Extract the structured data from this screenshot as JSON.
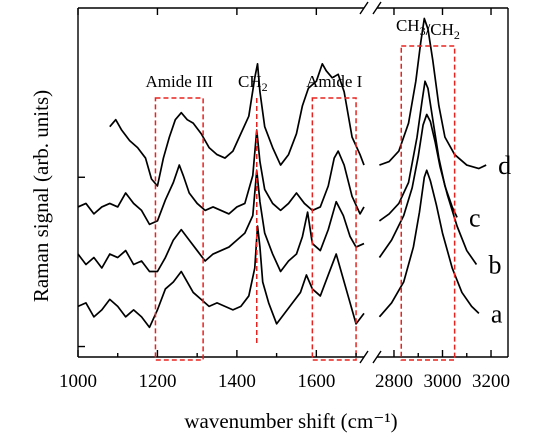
{
  "chart_data": {
    "type": "line",
    "title": "",
    "xlabel": "wavenumber shift (cm⁻¹)",
    "ylabel": "Raman signal (arb. units)",
    "x_ticks_left": [
      1000,
      1200,
      1400,
      1600
    ],
    "x_ticks_right": [
      2800,
      3000,
      3200
    ],
    "x_tick_labels": [
      "1000",
      "1200",
      "1400",
      "1600",
      "2800",
      "3000",
      "3200"
    ],
    "xlim_left": [
      1000,
      1720
    ],
    "xlim_right": [
      2730,
      3270
    ],
    "axis_break": "between 1720 and 2730 cm⁻¹",
    "ylim": [
      0,
      10
    ],
    "grid": false,
    "annotations": [
      {
        "label": "Amide III",
        "x_range": [
          1195,
          1315
        ],
        "kind": "dashed-box",
        "color": "#e8231f"
      },
      {
        "label": "CH",
        "sub": "2",
        "x": 1450,
        "kind": "dashed-line",
        "color": "#e8231f"
      },
      {
        "label": "Amide I",
        "x_range": [
          1590,
          1700
        ],
        "kind": "dashed-box",
        "color": "#e8231f"
      },
      {
        "label_parts": [
          {
            "t": "CH"
          },
          {
            "t": "3",
            "sub": true
          },
          {
            "t": "/CH"
          },
          {
            "t": "2",
            "sub": true
          }
        ],
        "x_range": [
          2830,
          3050
        ],
        "kind": "dashed-box",
        "color": "#e8231f"
      }
    ],
    "series": [
      {
        "name": "a",
        "offset": 0.55,
        "left": [
          [
            1000,
            0.9
          ],
          [
            1020,
            1.0
          ],
          [
            1040,
            0.6
          ],
          [
            1060,
            0.8
          ],
          [
            1080,
            1.1
          ],
          [
            1100,
            0.9
          ],
          [
            1120,
            0.6
          ],
          [
            1140,
            0.8
          ],
          [
            1160,
            0.6
          ],
          [
            1180,
            0.3
          ],
          [
            1200,
            0.8
          ],
          [
            1220,
            1.4
          ],
          [
            1240,
            1.6
          ],
          [
            1260,
            1.9
          ],
          [
            1270,
            1.7
          ],
          [
            1290,
            1.3
          ],
          [
            1310,
            1.1
          ],
          [
            1330,
            0.9
          ],
          [
            1350,
            1.0
          ],
          [
            1370,
            0.9
          ],
          [
            1390,
            0.8
          ],
          [
            1410,
            0.9
          ],
          [
            1430,
            1.2
          ],
          [
            1445,
            2.0
          ],
          [
            1452,
            3.2
          ],
          [
            1458,
            2.6
          ],
          [
            1465,
            1.6
          ],
          [
            1480,
            1.0
          ],
          [
            1500,
            0.4
          ],
          [
            1520,
            0.7
          ],
          [
            1540,
            1.0
          ],
          [
            1560,
            1.3
          ],
          [
            1575,
            1.8
          ],
          [
            1590,
            1.4
          ],
          [
            1610,
            1.2
          ],
          [
            1630,
            1.8
          ],
          [
            1650,
            2.4
          ],
          [
            1665,
            1.8
          ],
          [
            1680,
            1.2
          ],
          [
            1700,
            0.4
          ],
          [
            1720,
            0.7
          ]
        ],
        "right": [
          [
            2740,
            0.6
          ],
          [
            2790,
            1.0
          ],
          [
            2840,
            1.6
          ],
          [
            2880,
            2.6
          ],
          [
            2905,
            3.6
          ],
          [
            2925,
            4.6
          ],
          [
            2935,
            4.8
          ],
          [
            2950,
            4.5
          ],
          [
            2975,
            3.8
          ],
          [
            3000,
            3.0
          ],
          [
            3040,
            2.0
          ],
          [
            3080,
            1.3
          ],
          [
            3120,
            0.9
          ],
          [
            3150,
            0.7
          ]
        ]
      },
      {
        "name": "b",
        "offset": 1.85,
        "left": [
          [
            1000,
            1.1
          ],
          [
            1020,
            0.8
          ],
          [
            1040,
            1.0
          ],
          [
            1060,
            0.7
          ],
          [
            1080,
            1.1
          ],
          [
            1100,
            1.0
          ],
          [
            1120,
            1.2
          ],
          [
            1140,
            0.8
          ],
          [
            1160,
            0.9
          ],
          [
            1180,
            0.6
          ],
          [
            1200,
            0.6
          ],
          [
            1220,
            1.0
          ],
          [
            1240,
            1.5
          ],
          [
            1260,
            1.8
          ],
          [
            1280,
            1.5
          ],
          [
            1300,
            1.2
          ],
          [
            1320,
            0.9
          ],
          [
            1340,
            1.1
          ],
          [
            1360,
            1.2
          ],
          [
            1380,
            1.3
          ],
          [
            1400,
            1.5
          ],
          [
            1420,
            1.7
          ],
          [
            1440,
            2.2
          ],
          [
            1450,
            3.5
          ],
          [
            1458,
            2.6
          ],
          [
            1470,
            1.7
          ],
          [
            1490,
            1.1
          ],
          [
            1510,
            0.6
          ],
          [
            1530,
            0.9
          ],
          [
            1550,
            1.1
          ],
          [
            1565,
            1.6
          ],
          [
            1578,
            2.3
          ],
          [
            1590,
            1.4
          ],
          [
            1610,
            1.2
          ],
          [
            1630,
            1.8
          ],
          [
            1650,
            2.6
          ],
          [
            1668,
            2.2
          ],
          [
            1685,
            1.6
          ],
          [
            1700,
            1.3
          ],
          [
            1720,
            1.4
          ]
        ],
        "right": [
          [
            2740,
            1.0
          ],
          [
            2790,
            1.5
          ],
          [
            2840,
            2.2
          ],
          [
            2875,
            3.0
          ],
          [
            2900,
            3.9
          ],
          [
            2920,
            4.8
          ],
          [
            2935,
            5.1
          ],
          [
            2950,
            4.9
          ],
          [
            2970,
            4.3
          ],
          [
            2990,
            3.6
          ],
          [
            3020,
            2.8
          ],
          [
            3060,
            1.9
          ],
          [
            3100,
            1.2
          ],
          [
            3140,
            0.8
          ]
        ]
      },
      {
        "name": "c",
        "offset": 3.1,
        "left": [
          [
            1000,
            1.2
          ],
          [
            1020,
            1.3
          ],
          [
            1040,
            1.0
          ],
          [
            1060,
            1.2
          ],
          [
            1080,
            1.3
          ],
          [
            1100,
            1.2
          ],
          [
            1120,
            1.6
          ],
          [
            1140,
            1.3
          ],
          [
            1160,
            1.1
          ],
          [
            1180,
            0.7
          ],
          [
            1200,
            0.8
          ],
          [
            1220,
            1.4
          ],
          [
            1240,
            1.9
          ],
          [
            1255,
            2.4
          ],
          [
            1265,
            2.1
          ],
          [
            1280,
            1.6
          ],
          [
            1300,
            1.3
          ],
          [
            1320,
            1.1
          ],
          [
            1340,
            1.2
          ],
          [
            1360,
            1.1
          ],
          [
            1380,
            1.0
          ],
          [
            1400,
            1.2
          ],
          [
            1420,
            1.3
          ],
          [
            1440,
            2.1
          ],
          [
            1450,
            3.4
          ],
          [
            1458,
            2.5
          ],
          [
            1470,
            1.7
          ],
          [
            1490,
            1.3
          ],
          [
            1510,
            1.1
          ],
          [
            1530,
            1.3
          ],
          [
            1550,
            1.6
          ],
          [
            1570,
            1.3
          ],
          [
            1590,
            1.1
          ],
          [
            1610,
            1.2
          ],
          [
            1630,
            1.8
          ],
          [
            1645,
            2.6
          ],
          [
            1655,
            2.8
          ],
          [
            1670,
            2.4
          ],
          [
            1690,
            1.5
          ],
          [
            1710,
            1.0
          ],
          [
            1720,
            1.2
          ]
        ],
        "right": [
          [
            2740,
            0.8
          ],
          [
            2780,
            1.0
          ],
          [
            2820,
            1.3
          ],
          [
            2860,
            1.9
          ],
          [
            2895,
            3.2
          ],
          [
            2915,
            4.2
          ],
          [
            2928,
            4.8
          ],
          [
            2940,
            4.6
          ],
          [
            2960,
            3.7
          ],
          [
            2985,
            2.6
          ],
          [
            3010,
            1.8
          ],
          [
            3040,
            1.2
          ],
          [
            3060,
            0.9
          ]
        ]
      },
      {
        "name": "d",
        "offset": 5.5,
        "left": [
          [
            1080,
            1.1
          ],
          [
            1095,
            1.3
          ],
          [
            1110,
            1.0
          ],
          [
            1130,
            0.7
          ],
          [
            1150,
            0.5
          ],
          [
            1170,
            0.2
          ],
          [
            1185,
            -0.4
          ],
          [
            1200,
            -0.6
          ],
          [
            1215,
            0.2
          ],
          [
            1230,
            0.8
          ],
          [
            1245,
            1.3
          ],
          [
            1260,
            1.5
          ],
          [
            1275,
            1.3
          ],
          [
            1290,
            1.2
          ],
          [
            1310,
            0.9
          ],
          [
            1330,
            0.5
          ],
          [
            1350,
            0.3
          ],
          [
            1370,
            0.2
          ],
          [
            1390,
            0.4
          ],
          [
            1410,
            0.9
          ],
          [
            1430,
            1.4
          ],
          [
            1445,
            2.5
          ],
          [
            1452,
            2.9
          ],
          [
            1458,
            2.1
          ],
          [
            1470,
            1.1
          ],
          [
            1490,
            0.5
          ],
          [
            1510,
            0.0
          ],
          [
            1530,
            0.3
          ],
          [
            1550,
            0.9
          ],
          [
            1565,
            1.7
          ],
          [
            1580,
            2.2
          ],
          [
            1600,
            2.4
          ],
          [
            1615,
            2.9
          ],
          [
            1625,
            2.7
          ],
          [
            1640,
            2.5
          ],
          [
            1655,
            2.6
          ],
          [
            1670,
            2.1
          ],
          [
            1690,
            0.8
          ],
          [
            1710,
            0.3
          ],
          [
            1720,
            0.0
          ]
        ],
        "right": [
          [
            2740,
            0.0
          ],
          [
            2780,
            0.1
          ],
          [
            2820,
            0.4
          ],
          [
            2860,
            1.2
          ],
          [
            2890,
            2.4
          ],
          [
            2910,
            3.5
          ],
          [
            2925,
            4.2
          ],
          [
            2940,
            3.9
          ],
          [
            2960,
            3.0
          ],
          [
            2985,
            1.7
          ],
          [
            3010,
            0.8
          ],
          [
            3050,
            0.3
          ],
          [
            3100,
            0.0
          ],
          [
            3150,
            -0.1
          ],
          [
            3180,
            0.0
          ]
        ]
      }
    ]
  }
}
